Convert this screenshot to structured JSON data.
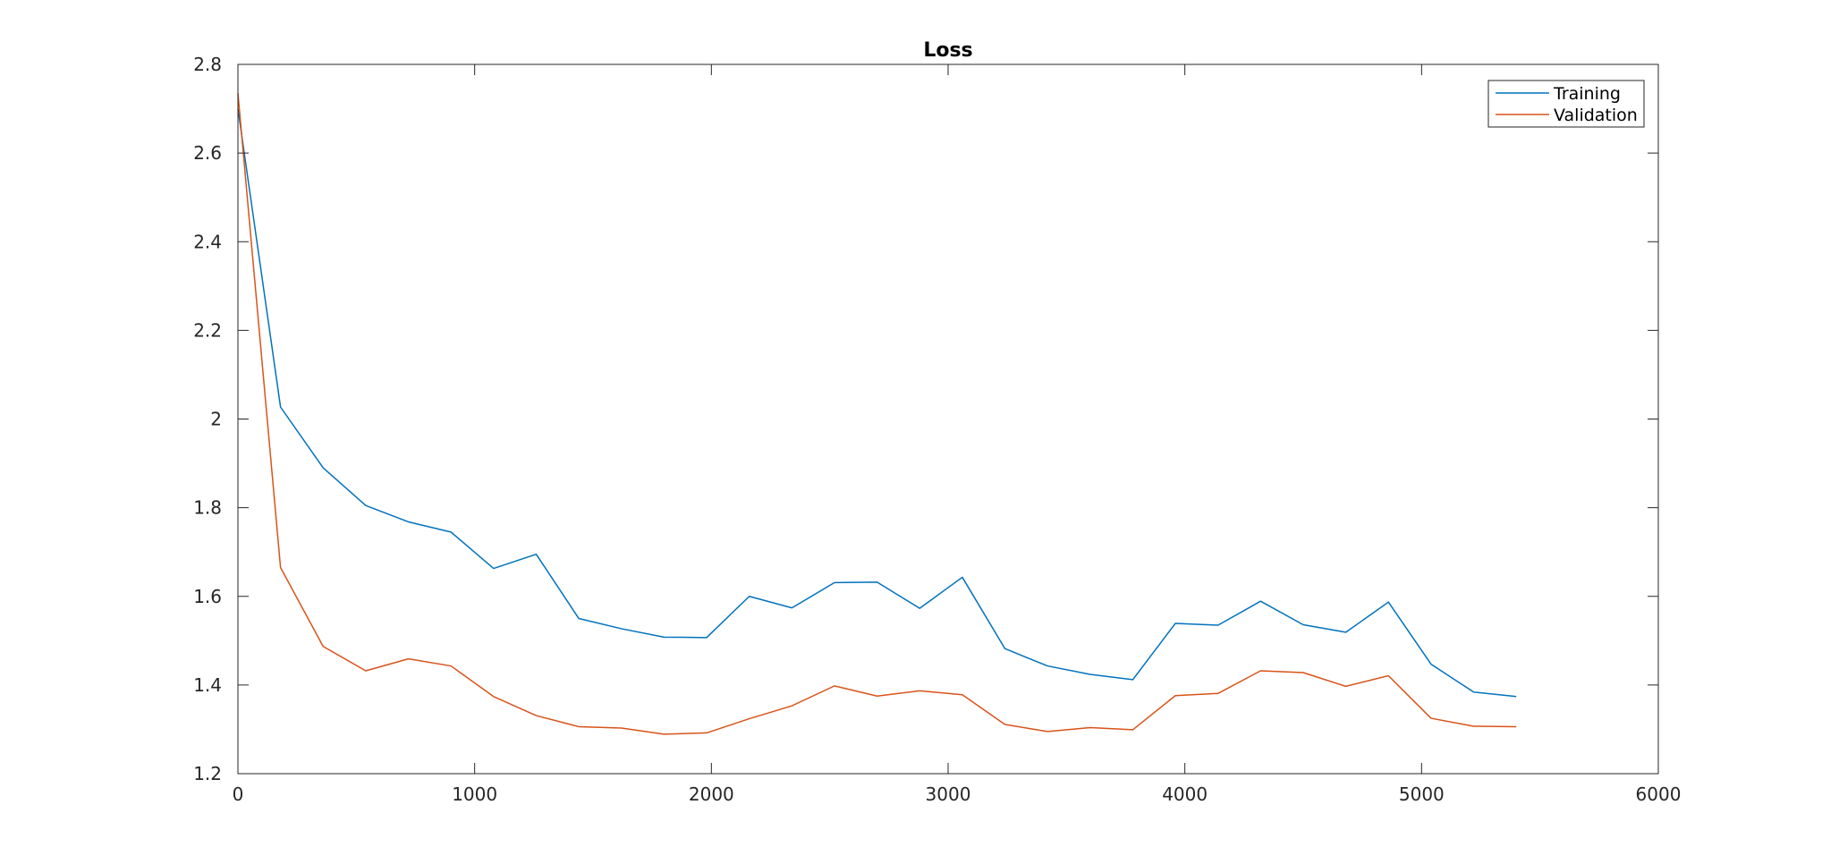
{
  "chart_data": {
    "type": "line",
    "title": "Loss",
    "xlabel": "",
    "ylabel": "",
    "xlim": [
      0,
      6000
    ],
    "ylim": [
      1.2,
      2.8
    ],
    "xticks": [
      0,
      1000,
      2000,
      3000,
      4000,
      5000,
      6000
    ],
    "xtick_labels": [
      "0",
      "1000",
      "2000",
      "3000",
      "4000",
      "5000",
      "6000"
    ],
    "yticks": [
      1.2,
      1.4,
      1.6,
      1.8,
      2.0,
      2.2,
      2.4,
      2.6,
      2.8
    ],
    "ytick_labels": [
      "1.2",
      "1.4",
      "1.6",
      "1.8",
      "2",
      "2.2",
      "2.4",
      "2.6",
      "2.8"
    ],
    "grid": false,
    "legend_position": "top-right",
    "x": [
      0,
      180,
      360,
      540,
      720,
      900,
      1080,
      1260,
      1440,
      1620,
      1800,
      1980,
      2160,
      2340,
      2520,
      2700,
      2880,
      3060,
      3240,
      3420,
      3600,
      3780,
      3960,
      4140,
      4320,
      4500,
      4680,
      4860,
      5040,
      5220,
      5400
    ],
    "series": [
      {
        "name": "Training",
        "color": "#0072BD",
        "values": [
          2.7,
          2.027,
          1.89,
          1.805,
          1.768,
          1.745,
          1.663,
          1.695,
          1.55,
          1.527,
          1.508,
          1.507,
          1.6,
          1.574,
          1.631,
          1.632,
          1.573,
          1.643,
          1.482,
          1.443,
          1.424,
          1.412,
          1.539,
          1.535,
          1.589,
          1.536,
          1.519,
          1.587,
          1.447,
          1.384,
          1.374
        ]
      },
      {
        "name": "Validation",
        "color": "#D95319",
        "values": [
          2.735,
          1.665,
          1.487,
          1.432,
          1.459,
          1.443,
          1.374,
          1.331,
          1.306,
          1.303,
          1.289,
          1.292,
          1.324,
          1.353,
          1.398,
          1.375,
          1.387,
          1.378,
          1.311,
          1.295,
          1.304,
          1.299,
          1.376,
          1.381,
          1.432,
          1.428,
          1.397,
          1.421,
          1.325,
          1.307,
          1.306
        ]
      }
    ]
  }
}
